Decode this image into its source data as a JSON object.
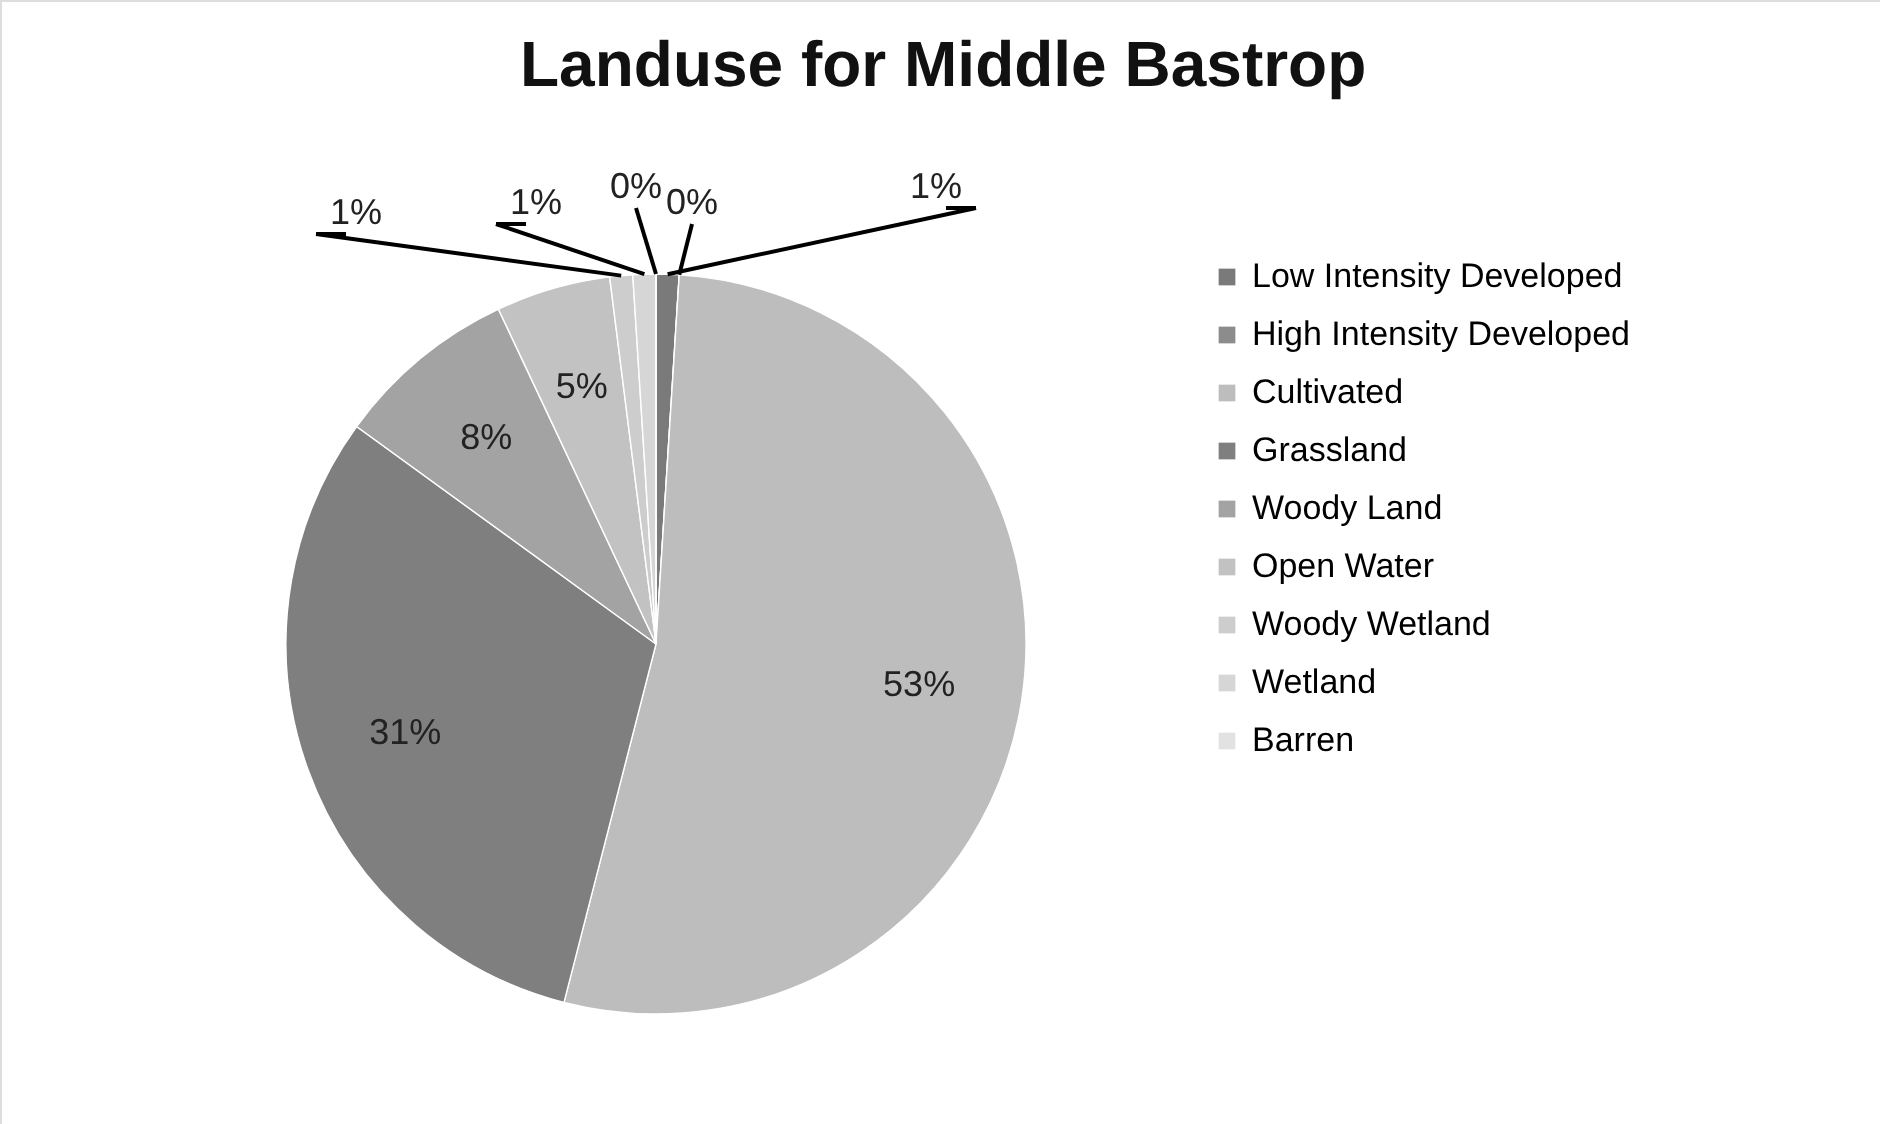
{
  "chart_data": {
    "type": "pie",
    "title": "Landuse for Middle Bastrop",
    "categories": [
      "Low Intensity Developed",
      "High Intensity Developed",
      "Cultivated",
      "Grassland",
      "Woody Land",
      "Open Water",
      "Woody Wetland",
      "Wetland",
      "Barren"
    ],
    "values": [
      1,
      0,
      53,
      31,
      8,
      5,
      1,
      1,
      0
    ],
    "colors": [
      "#7a7a7a",
      "#8c8c8c",
      "#bdbdbd",
      "#7f7f7f",
      "#a3a3a3",
      "#c2c2c2",
      "#cdcdcd",
      "#d6d6d6",
      "#e2e2e2"
    ],
    "value_labels": [
      "1%",
      "0%",
      "53%",
      "31%",
      "8%",
      "5%",
      "1%",
      "1%",
      "0%"
    ],
    "legend": "right"
  }
}
